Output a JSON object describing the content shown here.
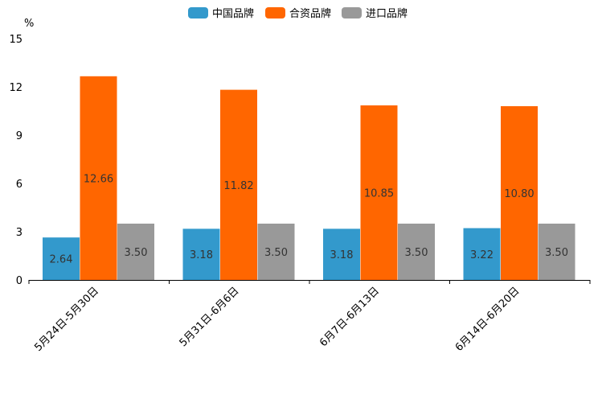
{
  "chart_data": {
    "type": "bar",
    "title": "",
    "xlabel": "",
    "ylabel": "%",
    "ylim": [
      0,
      15
    ],
    "yticks": [
      0,
      3,
      6,
      9,
      12,
      15
    ],
    "categories": [
      "5月24日-5月30日",
      "5月31日-6月6日",
      "6月7日-6月13日",
      "6月14日-6月20日"
    ],
    "series": [
      {
        "name": "中国品牌",
        "color": "#3399cc",
        "values": [
          2.64,
          3.18,
          3.18,
          3.22
        ],
        "labels": [
          "2.64",
          "3.18",
          "3.18",
          "3.22"
        ]
      },
      {
        "name": "合资品牌",
        "color": "#ff6600",
        "values": [
          12.66,
          11.82,
          10.85,
          10.8
        ],
        "labels": [
          "12.66",
          "11.82",
          "10.85",
          "10.80"
        ]
      },
      {
        "name": "进口品牌",
        "color": "#999999",
        "values": [
          3.5,
          3.5,
          3.5,
          3.5
        ],
        "labels": [
          "3.50",
          "3.50",
          "3.50",
          "3.50"
        ]
      }
    ],
    "legend_position": "top-center",
    "grid": false
  }
}
